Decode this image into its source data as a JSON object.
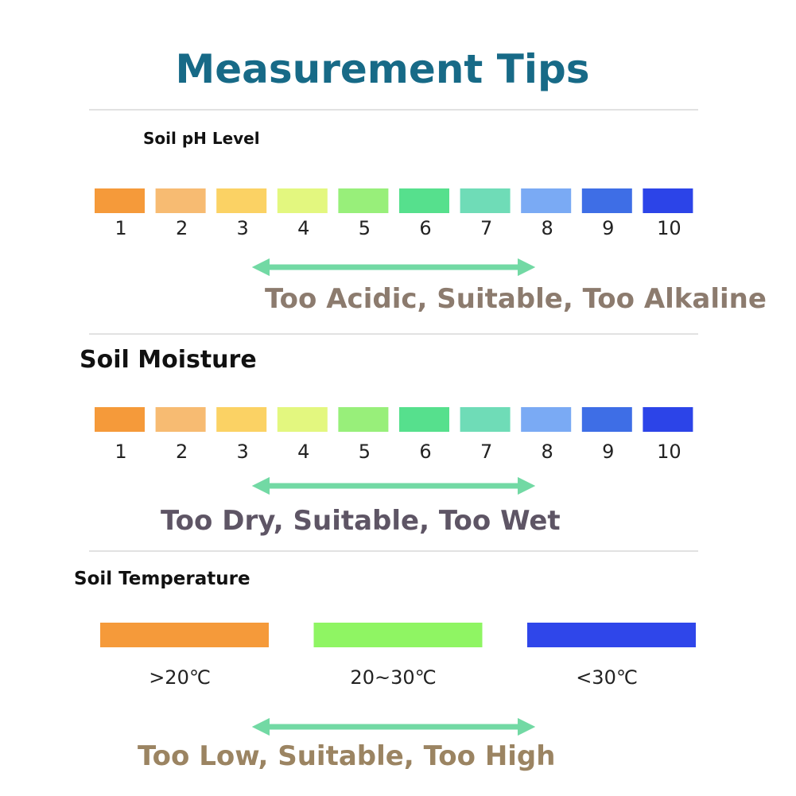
{
  "header": {
    "title": "Measurement Tips"
  },
  "sections": [
    {
      "title": "Soil pH Level",
      "scale": [
        1,
        2,
        3,
        4,
        5,
        6,
        7,
        8,
        9,
        10
      ],
      "caption": "Too Acidic, Suitable, Too Alkaline"
    },
    {
      "title": "Soil Moisture",
      "scale": [
        1,
        2,
        3,
        4,
        5,
        6,
        7,
        8,
        9,
        10
      ],
      "caption": "Too Dry, Suitable, Too Wet"
    },
    {
      "title": "Soil Temperature",
      "scale": [
        ">20℃",
        "20~30℃",
        "<30℃"
      ],
      "caption": "Too Low, Suitable, Too High"
    }
  ]
}
